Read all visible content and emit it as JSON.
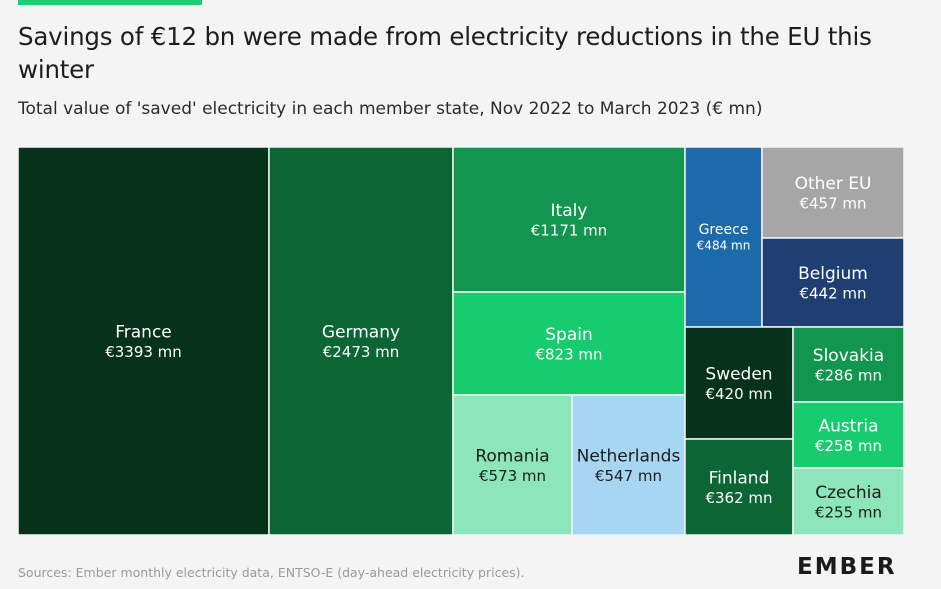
{
  "header": {
    "title": "Savings of €12 bn were made from electricity reductions in the EU this winter",
    "subtitle": "Total value of 'saved' electricity in each member state, Nov 2022 to March 2023 (€ mn)"
  },
  "footer": {
    "source": "Sources: Ember monthly electricity data, ENTSO-E (day-ahead electricity prices).",
    "logo": "EMBER"
  },
  "chart_data": {
    "type": "treemap",
    "title": "Savings of €12 bn were made from electricity reductions in the EU this winter",
    "subtitle": "Total value of 'saved' electricity in each member state, Nov 2022 to March 2023 (€ mn)",
    "unit": "€ mn",
    "items": [
      {
        "name": "France",
        "label": "€3393 mn",
        "value": 3393,
        "color": "#06321c",
        "text_color": "#ffffff"
      },
      {
        "name": "Germany",
        "label": "€2473 mn",
        "value": 2473,
        "color": "#0b6535",
        "text_color": "#ffffff"
      },
      {
        "name": "Italy",
        "label": "€1171 mn",
        "value": 1171,
        "color": "#11954f",
        "text_color": "#ffffff"
      },
      {
        "name": "Spain",
        "label": "€823 mn",
        "value": 823,
        "color": "#17cc6e",
        "text_color": "#ffffff"
      },
      {
        "name": "Romania",
        "label": "€573 mn",
        "value": 573,
        "color": "#8ce6b9",
        "text_color": "#1d1d1d"
      },
      {
        "name": "Netherlands",
        "label": "€547 mn",
        "value": 547,
        "color": "#a6d6f2",
        "text_color": "#1d1d1d"
      },
      {
        "name": "Greece",
        "label": "€484 mn",
        "value": 484,
        "color": "#1d6aab",
        "text_color": "#ffffff"
      },
      {
        "name": "Other EU",
        "label": "€457 mn",
        "value": 457,
        "color": "#a6a6a6",
        "text_color": "#ffffff"
      },
      {
        "name": "Belgium",
        "label": "€442 mn",
        "value": 442,
        "color": "#1f3e72",
        "text_color": "#ffffff"
      },
      {
        "name": "Sweden",
        "label": "€420 mn",
        "value": 420,
        "color": "#06321c",
        "text_color": "#ffffff"
      },
      {
        "name": "Slovakia",
        "label": "€286 mn",
        "value": 286,
        "color": "#11954f",
        "text_color": "#ffffff"
      },
      {
        "name": "Finland",
        "label": "€362 mn",
        "value": 362,
        "color": "#0b6535",
        "text_color": "#ffffff"
      },
      {
        "name": "Austria",
        "label": "€258 mn",
        "value": 258,
        "color": "#17cc6e",
        "text_color": "#ffffff"
      },
      {
        "name": "Czechia",
        "label": "€255 mn",
        "value": 255,
        "color": "#8ce6b9",
        "text_color": "#1d1d1d"
      }
    ]
  }
}
